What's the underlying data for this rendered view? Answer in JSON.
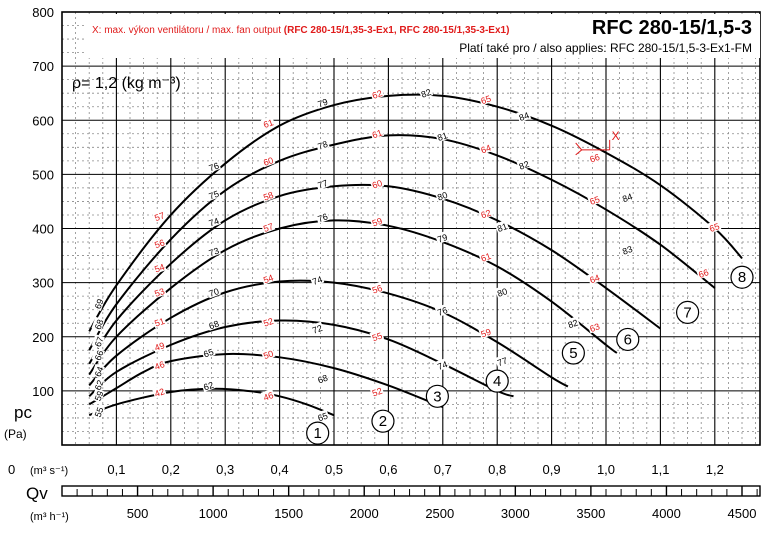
{
  "header": {
    "title": "RFC 280-15/1,5-3",
    "also_applies": "Platí také pro / also applies: RFC 280-15/1,5-3-Ex1-FM",
    "legend_x_prefix": "X: max. výkon ventilátoru / max. fan output ",
    "legend_x_models": "(RFC 280-15/1,35-3-Ex1, RFC 280-15/1,35-3-Ex1)",
    "density_label": "ρ= 1,2 (kg m⁻³)",
    "x_marker": "X"
  },
  "chart_data": {
    "type": "line",
    "title": "RFC 280-15/1,5-3",
    "ylabel": "pc (Pa)",
    "xlabel": "Qv (m³ s⁻¹)",
    "x2label": "(m³ h⁻¹)",
    "y_axis_label_main": "pc",
    "y_axis_label_unit": "(Pa)",
    "x_axis_symbol": "Qv",
    "x_axis_unit_m3s": "(m³ s⁻¹)",
    "x_axis_unit_m3h": "(m³ h⁻¹)",
    "x_origin_label": "0",
    "xlim": [
      0,
      1.31
    ],
    "ylim": [
      0,
      800
    ],
    "y_ticks": [
      100,
      200,
      300,
      400,
      500,
      600,
      700,
      800
    ],
    "x_ticks": [
      0.1,
      0.2,
      0.3,
      0.4,
      0.5,
      0.6,
      0.7,
      0.8,
      0.9,
      1.0,
      1.1,
      1.2
    ],
    "x_tick_labels": [
      "0,1",
      "0,2",
      "0,3",
      "0,4",
      "0,5",
      "0,6",
      "0,7",
      "0,8",
      "0,9",
      "1,0",
      "1,1",
      "1,2"
    ],
    "x2_ticks": [
      500,
      1000,
      1500,
      2000,
      2500,
      3000,
      3500,
      4000,
      4500
    ],
    "grid": true,
    "series": [
      {
        "label": "1",
        "points": [
          [
            0.05,
            55
          ],
          [
            0.1,
            75
          ],
          [
            0.2,
            98
          ],
          [
            0.28,
            104
          ],
          [
            0.35,
            99
          ],
          [
            0.4,
            90
          ],
          [
            0.45,
            75
          ],
          [
            0.5,
            55
          ]
        ]
      },
      {
        "label": "2",
        "points": [
          [
            0.05,
            75
          ],
          [
            0.1,
            105
          ],
          [
            0.15,
            135
          ],
          [
            0.2,
            155
          ],
          [
            0.3,
            168
          ],
          [
            0.4,
            162
          ],
          [
            0.5,
            142
          ],
          [
            0.6,
            110
          ],
          [
            0.7,
            70
          ]
        ]
      },
      {
        "label": "3",
        "points": [
          [
            0.05,
            90
          ],
          [
            0.1,
            135
          ],
          [
            0.2,
            185
          ],
          [
            0.3,
            218
          ],
          [
            0.4,
            230
          ],
          [
            0.5,
            222
          ],
          [
            0.6,
            195
          ],
          [
            0.7,
            150
          ],
          [
            0.8,
            100
          ],
          [
            0.83,
            90
          ]
        ]
      },
      {
        "label": "4",
        "points": [
          [
            0.05,
            110
          ],
          [
            0.1,
            165
          ],
          [
            0.2,
            235
          ],
          [
            0.3,
            282
          ],
          [
            0.4,
            302
          ],
          [
            0.5,
            300
          ],
          [
            0.6,
            280
          ],
          [
            0.7,
            245
          ],
          [
            0.8,
            190
          ],
          [
            0.9,
            125
          ],
          [
            0.93,
            108
          ]
        ]
      },
      {
        "label": "5",
        "points": [
          [
            0.05,
            130
          ],
          [
            0.1,
            200
          ],
          [
            0.2,
            290
          ],
          [
            0.3,
            360
          ],
          [
            0.4,
            400
          ],
          [
            0.5,
            415
          ],
          [
            0.6,
            405
          ],
          [
            0.7,
            375
          ],
          [
            0.8,
            330
          ],
          [
            0.9,
            265
          ],
          [
            1.0,
            185
          ],
          [
            1.02,
            170
          ]
        ]
      },
      {
        "label": "6",
        "points": [
          [
            0.05,
            150
          ],
          [
            0.1,
            230
          ],
          [
            0.2,
            335
          ],
          [
            0.3,
            415
          ],
          [
            0.4,
            460
          ],
          [
            0.5,
            478
          ],
          [
            0.6,
            478
          ],
          [
            0.7,
            455
          ],
          [
            0.8,
            415
          ],
          [
            0.9,
            360
          ],
          [
            1.0,
            290
          ],
          [
            1.1,
            215
          ]
        ]
      },
      {
        "label": "7",
        "points": [
          [
            0.05,
            175
          ],
          [
            0.1,
            260
          ],
          [
            0.2,
            380
          ],
          [
            0.3,
            470
          ],
          [
            0.4,
            525
          ],
          [
            0.5,
            555
          ],
          [
            0.6,
            572
          ],
          [
            0.7,
            565
          ],
          [
            0.8,
            535
          ],
          [
            0.9,
            490
          ],
          [
            1.0,
            435
          ],
          [
            1.1,
            370
          ],
          [
            1.2,
            290
          ]
        ]
      },
      {
        "label": "8",
        "points": [
          [
            0.05,
            210
          ],
          [
            0.1,
            295
          ],
          [
            0.2,
            425
          ],
          [
            0.3,
            520
          ],
          [
            0.4,
            590
          ],
          [
            0.5,
            628
          ],
          [
            0.6,
            645
          ],
          [
            0.7,
            645
          ],
          [
            0.8,
            625
          ],
          [
            0.9,
            590
          ],
          [
            1.0,
            540
          ],
          [
            1.1,
            480
          ],
          [
            1.2,
            400
          ],
          [
            1.25,
            345
          ]
        ]
      }
    ],
    "curve_labels": [
      {
        "text": "1",
        "x": 0.47,
        "y": 22
      },
      {
        "text": "2",
        "x": 0.59,
        "y": 44
      },
      {
        "text": "3",
        "x": 0.69,
        "y": 90
      },
      {
        "text": "4",
        "x": 0.8,
        "y": 118
      },
      {
        "text": "5",
        "x": 0.94,
        "y": 170
      },
      {
        "text": "6",
        "x": 1.04,
        "y": 195
      },
      {
        "text": "7",
        "x": 1.15,
        "y": 245
      },
      {
        "text": "8",
        "x": 1.25,
        "y": 310
      }
    ],
    "efficiency_labels_black": [
      {
        "text": "55",
        "x": 0.07,
        "y": 60
      },
      {
        "text": "62",
        "x": 0.27,
        "y": 107
      },
      {
        "text": "65",
        "x": 0.48,
        "y": 50
      },
      {
        "text": "59",
        "x": 0.07,
        "y": 90
      },
      {
        "text": "65",
        "x": 0.27,
        "y": 168
      },
      {
        "text": "68",
        "x": 0.48,
        "y": 120
      },
      {
        "text": "62",
        "x": 0.07,
        "y": 110
      },
      {
        "text": "68",
        "x": 0.28,
        "y": 220
      },
      {
        "text": "72",
        "x": 0.47,
        "y": 212
      },
      {
        "text": "74",
        "x": 0.7,
        "y": 145
      },
      {
        "text": "64",
        "x": 0.07,
        "y": 135
      },
      {
        "text": "70",
        "x": 0.28,
        "y": 280
      },
      {
        "text": "74",
        "x": 0.47,
        "y": 302
      },
      {
        "text": "76",
        "x": 0.7,
        "y": 245
      },
      {
        "text": "77",
        "x": 0.81,
        "y": 152
      },
      {
        "text": "66",
        "x": 0.07,
        "y": 165
      },
      {
        "text": "73",
        "x": 0.28,
        "y": 355
      },
      {
        "text": "76",
        "x": 0.48,
        "y": 418
      },
      {
        "text": "79",
        "x": 0.7,
        "y": 380
      },
      {
        "text": "80",
        "x": 0.81,
        "y": 280
      },
      {
        "text": "82",
        "x": 0.94,
        "y": 222
      },
      {
        "text": "67",
        "x": 0.07,
        "y": 190
      },
      {
        "text": "74",
        "x": 0.28,
        "y": 410
      },
      {
        "text": "77",
        "x": 0.48,
        "y": 480
      },
      {
        "text": "80",
        "x": 0.7,
        "y": 458
      },
      {
        "text": "81",
        "x": 0.81,
        "y": 400
      },
      {
        "text": "83",
        "x": 1.04,
        "y": 358
      },
      {
        "text": "68",
        "x": 0.07,
        "y": 222
      },
      {
        "text": "75",
        "x": 0.28,
        "y": 460
      },
      {
        "text": "78",
        "x": 0.48,
        "y": 552
      },
      {
        "text": "81",
        "x": 0.7,
        "y": 568
      },
      {
        "text": "82",
        "x": 0.85,
        "y": 515
      },
      {
        "text": "84",
        "x": 1.04,
        "y": 455
      },
      {
        "text": "69",
        "x": 0.07,
        "y": 260
      },
      {
        "text": "76",
        "x": 0.28,
        "y": 512
      },
      {
        "text": "79",
        "x": 0.48,
        "y": 630
      },
      {
        "text": "82",
        "x": 0.67,
        "y": 648
      },
      {
        "text": "84",
        "x": 0.85,
        "y": 605
      }
    ],
    "efficiency_labels_red": [
      {
        "text": "42",
        "x": 0.18,
        "y": 95
      },
      {
        "text": "46",
        "x": 0.38,
        "y": 88
      },
      {
        "text": "46",
        "x": 0.18,
        "y": 145
      },
      {
        "text": "50",
        "x": 0.38,
        "y": 165
      },
      {
        "text": "52",
        "x": 0.58,
        "y": 96
      },
      {
        "text": "49",
        "x": 0.18,
        "y": 180
      },
      {
        "text": "52",
        "x": 0.38,
        "y": 225
      },
      {
        "text": "55",
        "x": 0.58,
        "y": 198
      },
      {
        "text": "51",
        "x": 0.18,
        "y": 225
      },
      {
        "text": "54",
        "x": 0.38,
        "y": 305
      },
      {
        "text": "56",
        "x": 0.58,
        "y": 286
      },
      {
        "text": "59",
        "x": 0.78,
        "y": 205
      },
      {
        "text": "53",
        "x": 0.18,
        "y": 280
      },
      {
        "text": "57",
        "x": 0.38,
        "y": 400
      },
      {
        "text": "59",
        "x": 0.58,
        "y": 410
      },
      {
        "text": "61",
        "x": 0.78,
        "y": 345
      },
      {
        "text": "63",
        "x": 0.98,
        "y": 215
      },
      {
        "text": "54",
        "x": 0.18,
        "y": 325
      },
      {
        "text": "58",
        "x": 0.38,
        "y": 458
      },
      {
        "text": "60",
        "x": 0.58,
        "y": 480
      },
      {
        "text": "62",
        "x": 0.78,
        "y": 425
      },
      {
        "text": "64",
        "x": 0.98,
        "y": 305
      },
      {
        "text": "56",
        "x": 0.18,
        "y": 370
      },
      {
        "text": "60",
        "x": 0.38,
        "y": 522
      },
      {
        "text": "61",
        "x": 0.58,
        "y": 573
      },
      {
        "text": "64",
        "x": 0.78,
        "y": 545
      },
      {
        "text": "65",
        "x": 0.98,
        "y": 450
      },
      {
        "text": "66",
        "x": 1.18,
        "y": 315
      },
      {
        "text": "57",
        "x": 0.18,
        "y": 420
      },
      {
        "text": "61",
        "x": 0.38,
        "y": 592
      },
      {
        "text": "62",
        "x": 0.58,
        "y": 646
      },
      {
        "text": "65",
        "x": 0.78,
        "y": 636
      },
      {
        "text": "66",
        "x": 0.98,
        "y": 528
      },
      {
        "text": "65",
        "x": 1.2,
        "y": 400
      }
    ],
    "max_output_marker": {
      "x": 0.97,
      "y": 560
    }
  }
}
